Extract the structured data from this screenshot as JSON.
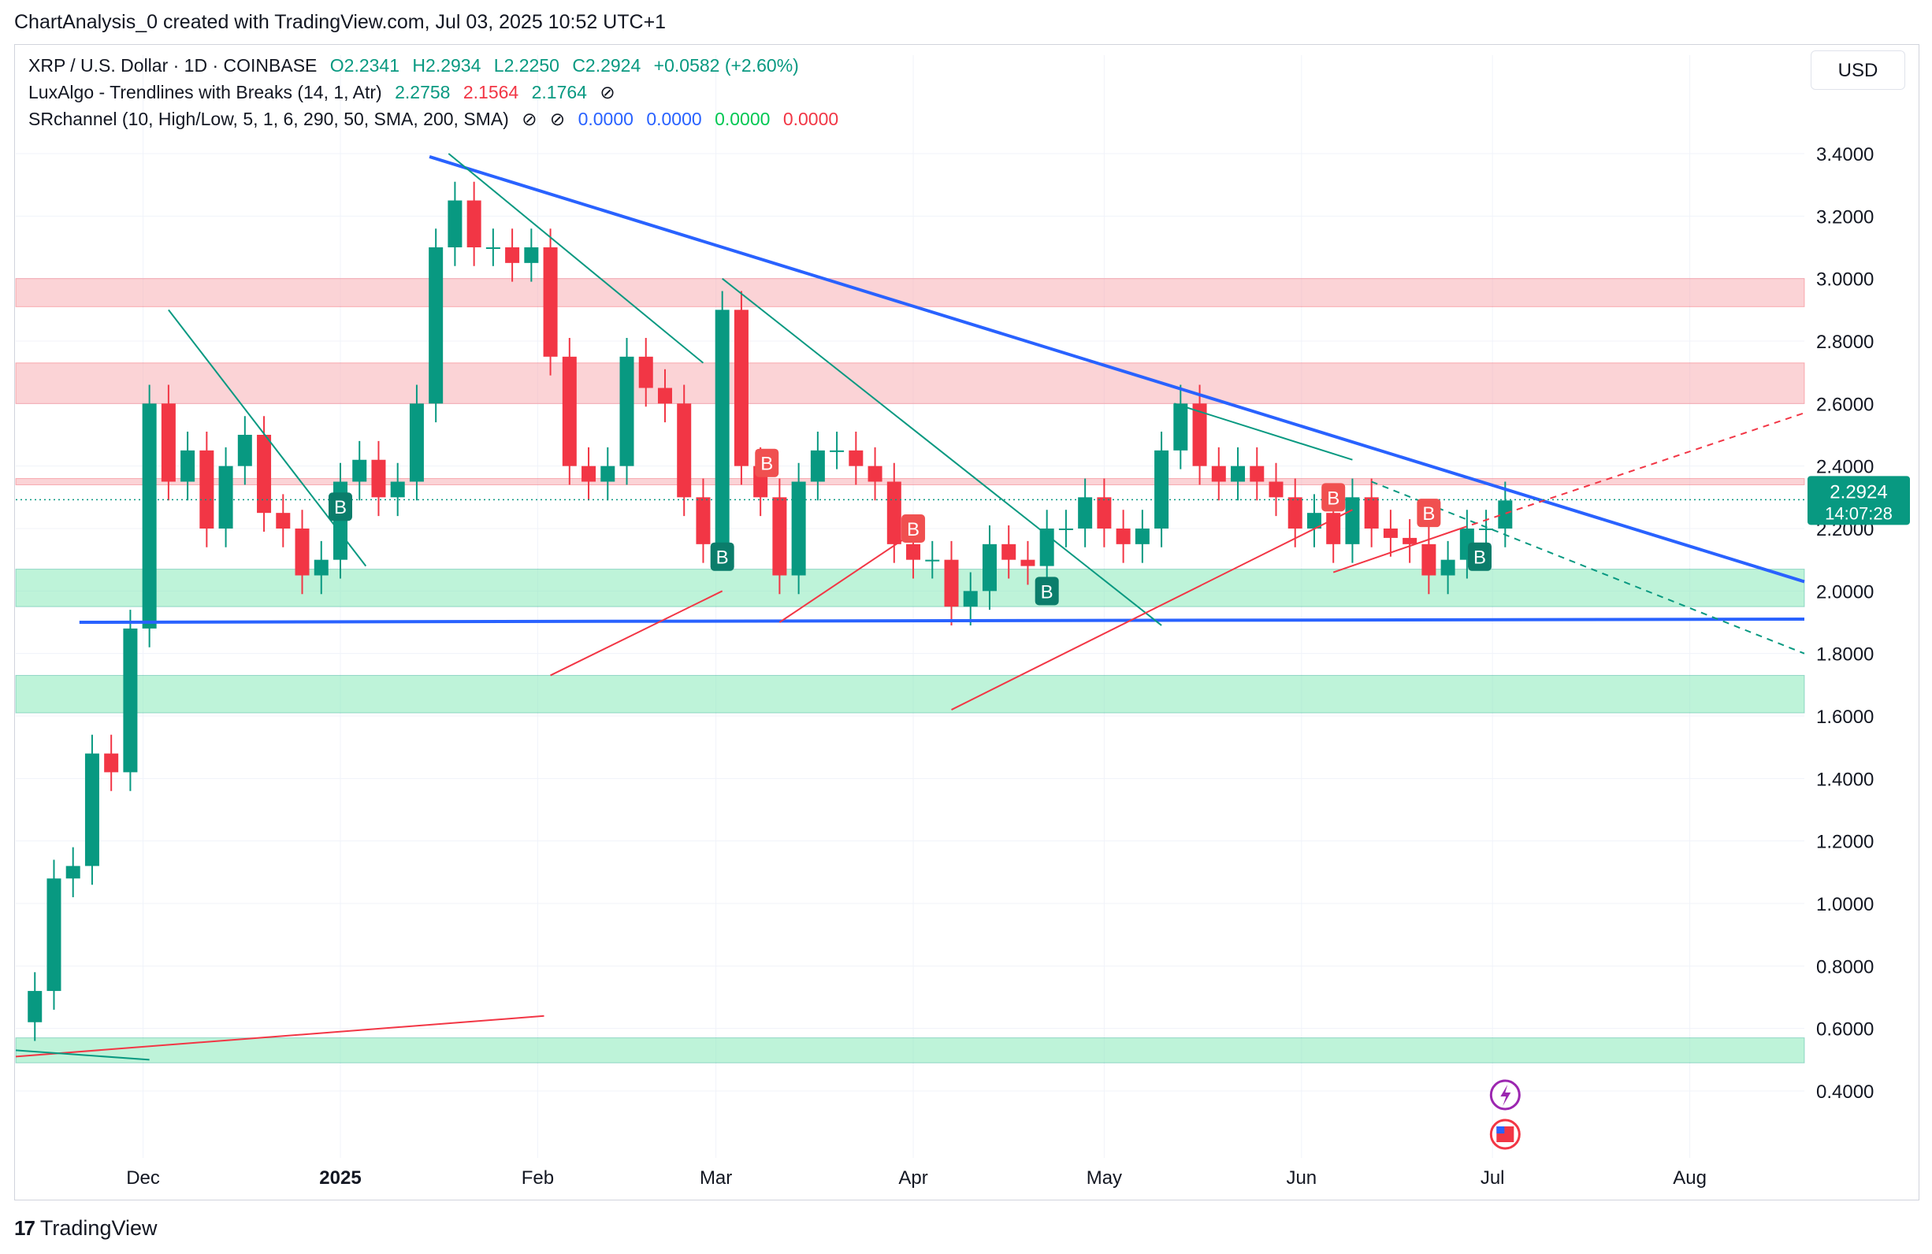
{
  "header": {
    "text": "ChartAnalysis_0 created with TradingView.com, Jul 03, 2025 10:52 UTC+1"
  },
  "legend": {
    "symbol": "XRP / U.S. Dollar · 1D · COINBASE",
    "open": "O2.2341",
    "high": "H2.2934",
    "low": "L2.2250",
    "close": "C2.2924",
    "change": "+0.0582 (+2.60%)",
    "luxalgo_label": "LuxAlgo - Trendlines with Breaks (14, 1, Atr)",
    "luxalgo_v1": "2.2758",
    "luxalgo_v2": "2.1564",
    "luxalgo_v3": "2.1764",
    "srchannel_label": "SRchannel (10, High/Low, 5, 1, 6, 290, 50, SMA, 200, SMA)",
    "sr_v1": "0.0000",
    "sr_v2": "0.0000",
    "sr_v3": "0.0000",
    "sr_v4": "0.0000",
    "hidden_glyph": "⊘"
  },
  "currency": "USD",
  "price_tag": {
    "price": "2.2924",
    "countdown": "14:07:28"
  },
  "footer": {
    "brand": "TradingView",
    "mark": "17"
  },
  "colors": {
    "up": "#089981",
    "down": "#f23645",
    "trend_blue": "#2962ff",
    "resistance_zone": "#f7a8ad",
    "support_zone": "#7ee8b4",
    "grid": "#f0f3fa",
    "axis_text": "#131722"
  },
  "chart_data": {
    "type": "candlestick",
    "symbol": "XRP / U.S. Dollar",
    "interval": "1D",
    "exchange": "COINBASE",
    "y_tick_labels": [
      "0.4000",
      "0.6000",
      "0.8000",
      "1.0000",
      "1.2000",
      "1.4000",
      "1.6000",
      "1.8000",
      "2.0000",
      "2.2000",
      "2.4000",
      "2.6000",
      "2.8000",
      "3.0000",
      "3.2000",
      "3.4000"
    ],
    "y_ticks": [
      0.4,
      0.6,
      0.8,
      1.0,
      1.2,
      1.4,
      1.6,
      1.8,
      2.0,
      2.2,
      2.4,
      2.6,
      2.8,
      3.0,
      3.2,
      3.4
    ],
    "ylim": [
      0.2,
      3.6
    ],
    "x_tick_labels": [
      "Dec",
      "2025",
      "Feb",
      "Mar",
      "Apr",
      "May",
      "Jun",
      "Jul",
      "Aug"
    ],
    "x_tick_dates": [
      "2024-12-01",
      "2025-01-01",
      "2025-02-01",
      "2025-03-01",
      "2025-04-01",
      "2025-05-01",
      "2025-06-01",
      "2025-07-01",
      "2025-08-01"
    ],
    "xlim": [
      "2024-11-11",
      "2025-08-19"
    ],
    "last_price": 2.2924,
    "last_price_color": "#089981",
    "price_series": [
      [
        "2024-11-11",
        0.62
      ],
      [
        "2024-11-14",
        0.72
      ],
      [
        "2024-11-17",
        1.08
      ],
      [
        "2024-11-20",
        1.12
      ],
      [
        "2024-11-23",
        1.48
      ],
      [
        "2024-11-26",
        1.42
      ],
      [
        "2024-11-29",
        1.88
      ],
      [
        "2024-12-02",
        2.6
      ],
      [
        "2024-12-05",
        2.35
      ],
      [
        "2024-12-08",
        2.45
      ],
      [
        "2024-12-11",
        2.2
      ],
      [
        "2024-12-14",
        2.4
      ],
      [
        "2024-12-17",
        2.5
      ],
      [
        "2024-12-20",
        2.25
      ],
      [
        "2024-12-23",
        2.2
      ],
      [
        "2024-12-26",
        2.05
      ],
      [
        "2024-12-29",
        2.1
      ],
      [
        "2025-01-01",
        2.35
      ],
      [
        "2025-01-04",
        2.42
      ],
      [
        "2025-01-07",
        2.3
      ],
      [
        "2025-01-10",
        2.35
      ],
      [
        "2025-01-13",
        2.6
      ],
      [
        "2025-01-16",
        3.1
      ],
      [
        "2025-01-19",
        3.25
      ],
      [
        "2025-01-22",
        3.1
      ],
      [
        "2025-01-25",
        3.1
      ],
      [
        "2025-01-28",
        3.05
      ],
      [
        "2025-01-31",
        3.1
      ],
      [
        "2025-02-03",
        2.75
      ],
      [
        "2025-02-06",
        2.4
      ],
      [
        "2025-02-09",
        2.35
      ],
      [
        "2025-02-12",
        2.4
      ],
      [
        "2025-02-15",
        2.75
      ],
      [
        "2025-02-18",
        2.65
      ],
      [
        "2025-02-21",
        2.6
      ],
      [
        "2025-02-24",
        2.3
      ],
      [
        "2025-02-27",
        2.15
      ],
      [
        "2025-03-02",
        2.9
      ],
      [
        "2025-03-05",
        2.4
      ],
      [
        "2025-03-08",
        2.3
      ],
      [
        "2025-03-11",
        2.05
      ],
      [
        "2025-03-14",
        2.35
      ],
      [
        "2025-03-17",
        2.45
      ],
      [
        "2025-03-20",
        2.45
      ],
      [
        "2025-03-23",
        2.4
      ],
      [
        "2025-03-26",
        2.35
      ],
      [
        "2025-03-29",
        2.15
      ],
      [
        "2025-04-01",
        2.1
      ],
      [
        "2025-04-04",
        2.1
      ],
      [
        "2025-04-07",
        1.95
      ],
      [
        "2025-04-10",
        2.0
      ],
      [
        "2025-04-13",
        2.15
      ],
      [
        "2025-04-16",
        2.1
      ],
      [
        "2025-04-19",
        2.08
      ],
      [
        "2025-04-22",
        2.2
      ],
      [
        "2025-04-25",
        2.2
      ],
      [
        "2025-04-28",
        2.3
      ],
      [
        "2025-05-01",
        2.2
      ],
      [
        "2025-05-04",
        2.15
      ],
      [
        "2025-05-07",
        2.2
      ],
      [
        "2025-05-10",
        2.45
      ],
      [
        "2025-05-13",
        2.6
      ],
      [
        "2025-05-16",
        2.4
      ],
      [
        "2025-05-19",
        2.35
      ],
      [
        "2025-05-22",
        2.4
      ],
      [
        "2025-05-25",
        2.35
      ],
      [
        "2025-05-28",
        2.3
      ],
      [
        "2025-05-31",
        2.2
      ],
      [
        "2025-06-03",
        2.25
      ],
      [
        "2025-06-06",
        2.15
      ],
      [
        "2025-06-09",
        2.3
      ],
      [
        "2025-06-12",
        2.2
      ],
      [
        "2025-06-15",
        2.17
      ],
      [
        "2025-06-18",
        2.15
      ],
      [
        "2025-06-21",
        2.05
      ],
      [
        "2025-06-24",
        2.1
      ],
      [
        "2025-06-27",
        2.2
      ],
      [
        "2025-06-30",
        2.2
      ],
      [
        "2025-07-03",
        2.29
      ]
    ],
    "trendlines": [
      {
        "name": "descending resistance",
        "color": "#2962ff",
        "from": [
          "2025-01-15",
          3.39
        ],
        "to": [
          "2025-08-19",
          2.03
        ]
      },
      {
        "name": "horizontal support",
        "color": "#2962ff",
        "from": [
          "2024-11-21",
          1.9
        ],
        "to": [
          "2025-08-19",
          1.91
        ]
      },
      {
        "name": "lux down 1",
        "color": "#089981",
        "from": [
          "2024-12-05",
          2.9
        ],
        "to": [
          "2025-01-05",
          2.08
        ]
      },
      {
        "name": "lux down 2",
        "color": "#089981",
        "from": [
          "2025-01-18",
          3.4
        ],
        "to": [
          "2025-02-27",
          2.73
        ]
      },
      {
        "name": "lux down 3",
        "color": "#089981",
        "from": [
          "2025-03-02",
          3.0
        ],
        "to": [
          "2025-05-10",
          1.89
        ]
      },
      {
        "name": "lux down 4",
        "color": "#089981",
        "from": [
          "2025-05-12",
          2.6
        ],
        "to": [
          "2025-06-09",
          2.42
        ]
      },
      {
        "name": "lux down ext",
        "color": "#089981",
        "dashed": true,
        "from": [
          "2025-06-12",
          2.35
        ],
        "to": [
          "2025-08-19",
          1.8
        ]
      },
      {
        "name": "lux up 1",
        "color": "#f23645",
        "from": [
          "2025-02-03",
          1.73
        ],
        "to": [
          "2025-03-02",
          2.0
        ]
      },
      {
        "name": "lux up 2",
        "color": "#f23645",
        "from": [
          "2025-03-11",
          1.9
        ],
        "to": [
          "2025-04-02",
          2.2
        ]
      },
      {
        "name": "lux up 3",
        "color": "#f23645",
        "from": [
          "2025-04-07",
          1.62
        ],
        "to": [
          "2025-06-09",
          2.26
        ]
      },
      {
        "name": "lux up 4",
        "color": "#f23645",
        "from": [
          "2025-06-06",
          2.06
        ],
        "to": [
          "2025-06-26",
          2.2
        ]
      },
      {
        "name": "lux up ext",
        "color": "#f23645",
        "dashed": true,
        "from": [
          "2025-06-26",
          2.2
        ],
        "to": [
          "2025-08-19",
          2.57
        ]
      },
      {
        "name": "lux up low",
        "color": "#f23645",
        "from": [
          "2024-11-11",
          0.51
        ],
        "to": [
          "2025-02-02",
          0.64
        ]
      },
      {
        "name": "lux down low",
        "color": "#089981",
        "from": [
          "2024-11-11",
          0.53
        ],
        "to": [
          "2024-12-02",
          0.5
        ]
      }
    ],
    "zones": [
      {
        "type": "resistance",
        "from": 2.91,
        "to": 3.0
      },
      {
        "type": "resistance",
        "from": 2.6,
        "to": 2.73
      },
      {
        "type": "resistance",
        "from": 2.34,
        "to": 2.36
      },
      {
        "type": "support",
        "from": 1.95,
        "to": 2.07
      },
      {
        "type": "support",
        "from": 1.61,
        "to": 1.73
      },
      {
        "type": "support",
        "from": 0.49,
        "to": 0.57
      }
    ],
    "break_labels": [
      {
        "text": "B",
        "kind": "up",
        "date": "2025-01-01",
        "price": 2.27
      },
      {
        "text": "B",
        "kind": "up",
        "date": "2025-03-02",
        "price": 2.11
      },
      {
        "text": "B",
        "kind": "down",
        "date": "2025-03-09",
        "price": 2.41
      },
      {
        "text": "B",
        "kind": "down",
        "date": "2025-04-01",
        "price": 2.2
      },
      {
        "text": "B",
        "kind": "up",
        "date": "2025-04-22",
        "price": 2.0
      },
      {
        "text": "B",
        "kind": "down",
        "date": "2025-06-06",
        "price": 2.3
      },
      {
        "text": "B",
        "kind": "down",
        "date": "2025-06-21",
        "price": 2.25
      },
      {
        "text": "B",
        "kind": "up",
        "date": "2025-06-29",
        "price": 2.11
      }
    ],
    "event_markers": [
      {
        "kind": "lightning",
        "date": "2025-07-03"
      },
      {
        "kind": "us-flag",
        "date": "2025-07-03"
      }
    ]
  }
}
